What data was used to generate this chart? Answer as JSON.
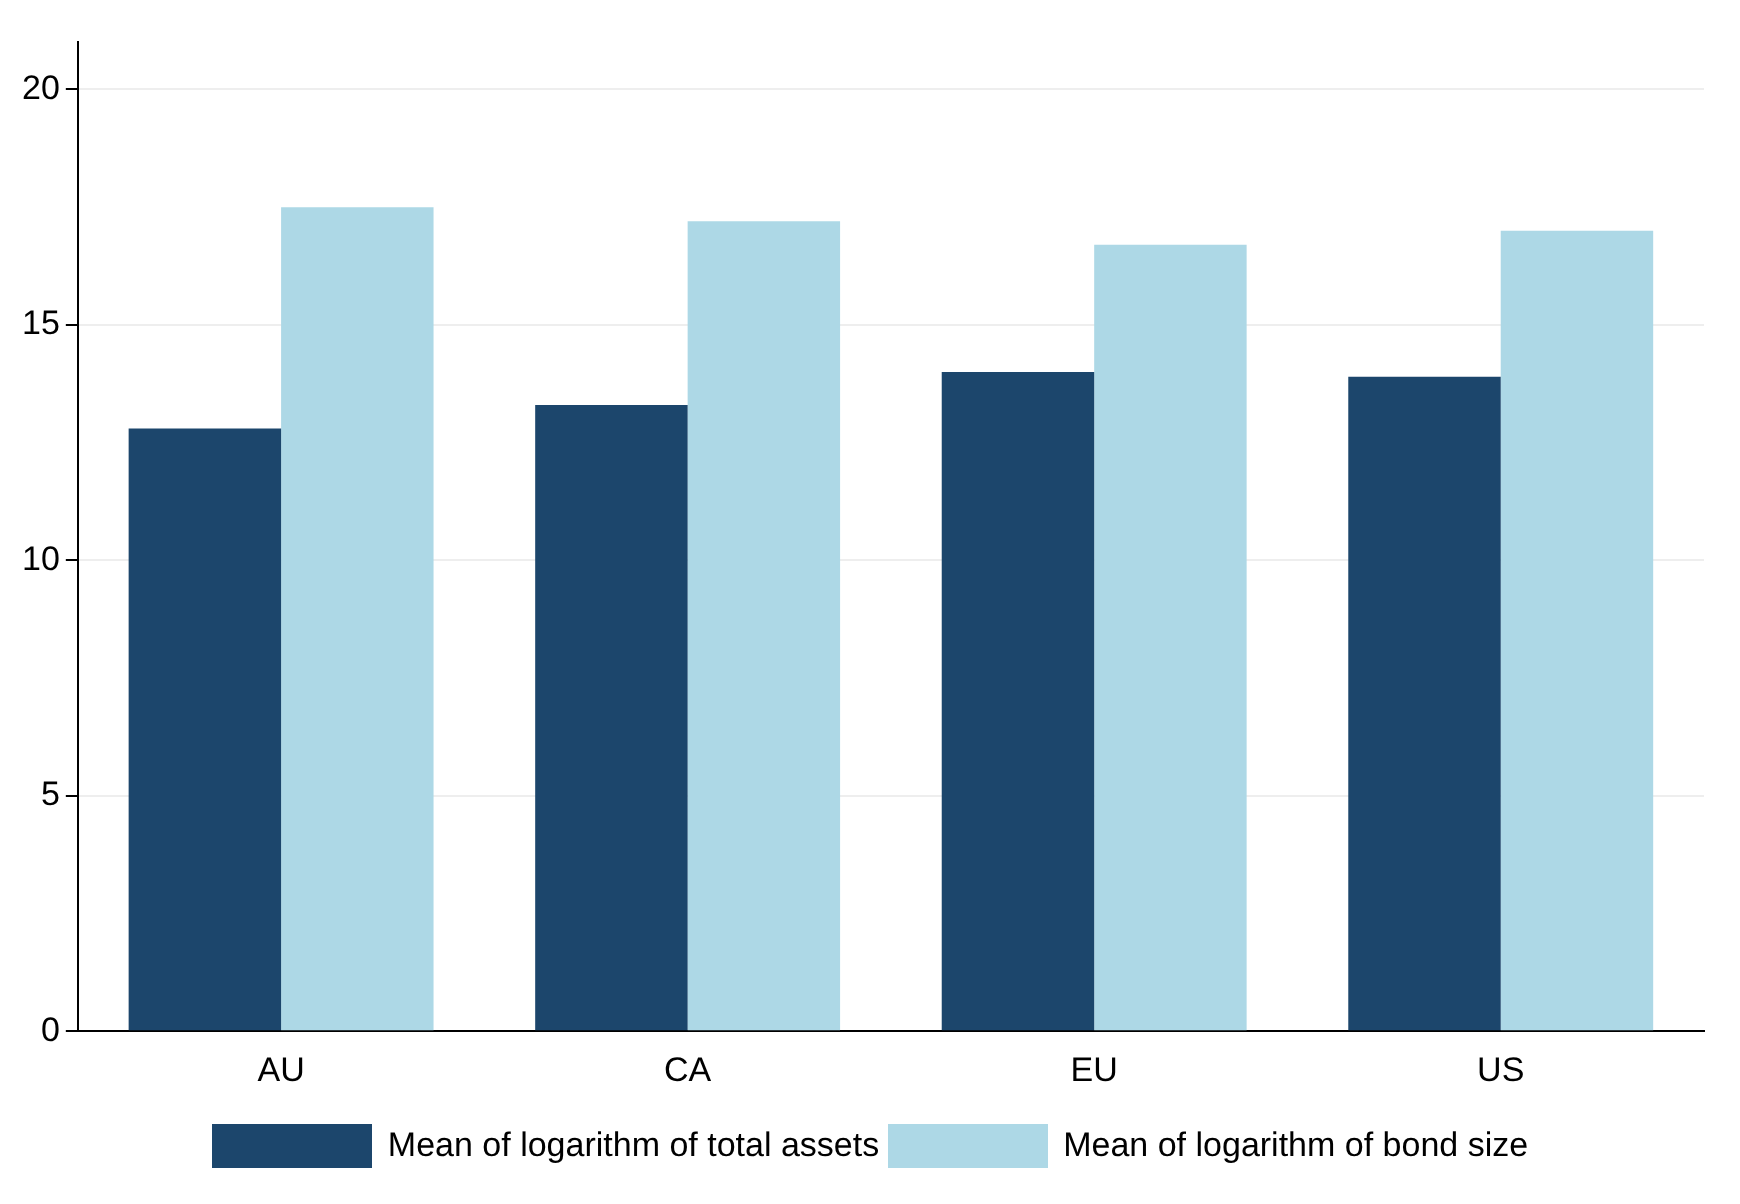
{
  "chart_data": {
    "type": "bar",
    "categories": [
      "AU",
      "CA",
      "EU",
      "US"
    ],
    "series": [
      {
        "name": "Mean of logarithm of total assets",
        "color": "#1c466c",
        "values": [
          12.8,
          13.3,
          14.0,
          13.9
        ]
      },
      {
        "name": "Mean of logarithm of bond size",
        "color": "#add8e6",
        "values": [
          17.5,
          17.2,
          16.7,
          17.0
        ]
      }
    ],
    "ylim": [
      0,
      21
    ],
    "yticks": [
      0,
      5,
      10,
      15,
      20
    ],
    "grid": "y",
    "legend": "bottom"
  }
}
